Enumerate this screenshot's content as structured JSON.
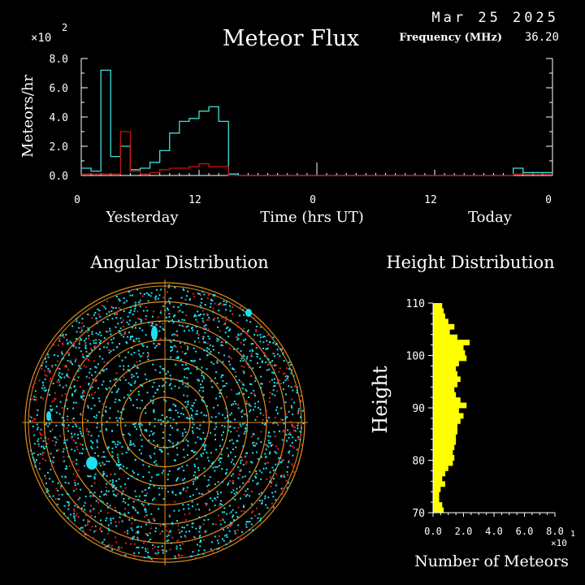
{
  "header": {
    "date": "Mar 25 2025",
    "title": "Meteor Flux",
    "frequency_label": "Frequency (MHz)",
    "frequency_value": "36.20"
  },
  "colors": {
    "cyan": "#3fe0d8",
    "red": "#c81010",
    "yellow": "#ffff00",
    "orange": "#e09020",
    "white": "#ffffff",
    "polar_cyan": "#20e0f0",
    "polar_red": "#e02020"
  },
  "chart_data": [
    {
      "id": "flux",
      "type": "line",
      "title": "Meteor Flux",
      "ylabel": "Meteors/hr",
      "y_multiplier": "×10",
      "y_exponent": "2",
      "ylim": [
        0,
        8
      ],
      "yticks": [
        "0.0",
        "2.0",
        "4.0",
        "6.0",
        "8.0"
      ],
      "yticks_values": [
        0,
        2,
        4,
        6,
        8
      ],
      "xlim": [
        0,
        48
      ],
      "xticks": [
        "0",
        "12",
        "0",
        "12",
        "0"
      ],
      "xticks_values": [
        0,
        12,
        24,
        36,
        48
      ],
      "xlabel": "Time (hrs UT)",
      "day_labels": [
        "Yesterday",
        "Today"
      ],
      "series": [
        {
          "color": "cyan",
          "step_values": [
            0.5,
            0.3,
            7.2,
            1.3,
            2.0,
            0.4,
            0.5,
            0.9,
            1.7,
            2.9,
            3.7,
            3.9,
            4.4,
            4.7,
            3.7,
            0.1,
            0.0,
            0.0,
            0.0,
            0.0,
            0.0,
            0.0,
            0.0,
            0.0,
            0.0,
            0.0,
            0.0,
            0.0,
            0.0,
            0.0,
            0.0,
            0.0,
            0.0,
            0.0,
            0.0,
            0.0,
            0.0,
            0.0,
            0.0,
            0.0,
            0.0,
            0.0,
            0.0,
            0.0,
            0.5,
            0.2,
            0.2,
            0.2
          ]
        },
        {
          "color": "red",
          "step_values": [
            0.1,
            0.1,
            0.1,
            0.1,
            3.0,
            0.3,
            0.1,
            0.2,
            0.4,
            0.5,
            0.5,
            0.6,
            0.8,
            0.6,
            0.6,
            0.0,
            0.0,
            0.0,
            0.0,
            0.0,
            0.0,
            0.0,
            0.0,
            0.0,
            0.0,
            0.0,
            0.0,
            0.0,
            0.0,
            0.0,
            0.0,
            0.0,
            0.0,
            0.0,
            0.0,
            0.0,
            0.0,
            0.0,
            0.0,
            0.0,
            0.0,
            0.0,
            0.0,
            0.0,
            0.1,
            0.1,
            0.1,
            0.1
          ]
        }
      ],
      "now_marker_x": 24
    },
    {
      "id": "angular",
      "type": "scatter",
      "title": "Angular Distribution",
      "projection": "polar",
      "rings": 7,
      "clusters": [
        {
          "color": "polar_cyan",
          "cx": 0.18,
          "cy": 0.62,
          "count": 6
        },
        {
          "color": "polar_cyan",
          "cx": 0.89,
          "cy": 0.33,
          "count": 5
        },
        {
          "color": "polar_cyan",
          "cx": 0.07,
          "cy": 0.13,
          "count": 4
        },
        {
          "color": "polar_cyan",
          "cx": 0.55,
          "cy": 0.2,
          "count": 4
        }
      ]
    },
    {
      "id": "height",
      "type": "bar",
      "orientation": "horizontal",
      "title": "Height Distribution",
      "ylabel": "Height",
      "xlabel": "Number of Meteors",
      "x_multiplier": "×10",
      "x_exponent": "1",
      "ylim": [
        70,
        110
      ],
      "yticks": [
        "70",
        "80",
        "90",
        "100",
        "110"
      ],
      "yticks_values": [
        70,
        80,
        90,
        100,
        110
      ],
      "xlim": [
        0,
        80
      ],
      "xticks": [
        "0.0",
        "2.0",
        "4.0",
        "6.0",
        "8.0"
      ],
      "xticks_values": [
        0,
        20,
        40,
        60,
        80
      ],
      "bin_heights": [
        70.5,
        71.5,
        72.5,
        73.5,
        74.5,
        75.5,
        76.5,
        77.5,
        78.5,
        79.5,
        80.5,
        81.5,
        82.5,
        83.5,
        84.5,
        85.5,
        86.5,
        87.5,
        88.5,
        89.5,
        90.5,
        91.5,
        92.5,
        93.5,
        94.5,
        95.5,
        96.5,
        97.5,
        98.5,
        99.5,
        100.5,
        101.5,
        102.5,
        103.5,
        104.5,
        105.5,
        106.5,
        107.5,
        108.5,
        109.5
      ],
      "values": [
        7,
        6,
        4,
        4,
        5,
        8,
        6,
        8,
        10,
        13,
        14,
        13,
        14,
        15,
        15,
        16,
        16,
        18,
        20,
        17,
        22,
        18,
        15,
        14,
        16,
        18,
        16,
        15,
        17,
        22,
        21,
        20,
        24,
        16,
        11,
        14,
        10,
        8,
        7,
        6
      ],
      "bin_values_order": "bottom_to_top",
      "color": "yellow"
    }
  ]
}
